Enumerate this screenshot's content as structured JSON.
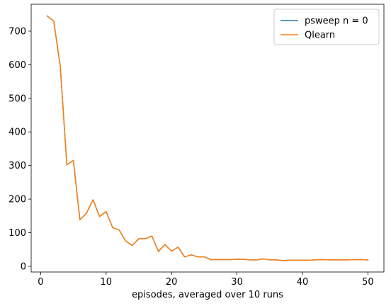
{
  "chart_data": {
    "type": "line",
    "xlabel": "episodes, averaged over 10 runs",
    "ylabel": "",
    "xlim": [
      -1.45,
      52.45
    ],
    "ylim": [
      -17,
      780
    ],
    "xticks": [
      0,
      10,
      20,
      30,
      40,
      50
    ],
    "yticks": [
      0,
      100,
      200,
      300,
      400,
      500,
      600,
      700
    ],
    "grid": false,
    "legend_position": "top-right",
    "x": [
      1,
      2,
      3,
      4,
      5,
      6,
      7,
      8,
      9,
      10,
      11,
      12,
      13,
      14,
      15,
      16,
      17,
      18,
      19,
      20,
      21,
      22,
      23,
      24,
      25,
      26,
      27,
      28,
      29,
      30,
      31,
      32,
      33,
      34,
      35,
      36,
      37,
      38,
      39,
      40,
      41,
      42,
      43,
      44,
      45,
      46,
      47,
      48,
      49,
      50
    ],
    "series": [
      {
        "name": "psweep n = 0",
        "color": "#1f77b4",
        "values": [
          745,
          730,
          595,
          302,
          315,
          138,
          158,
          198,
          148,
          163,
          115,
          108,
          75,
          62,
          82,
          82,
          90,
          44,
          65,
          45,
          57,
          28,
          34,
          28,
          28,
          20,
          20,
          20,
          20,
          21,
          21,
          19,
          19,
          22,
          19,
          19,
          17,
          18,
          18,
          18,
          18,
          19,
          20,
          19,
          19,
          19,
          19,
          20,
          20,
          19
        ]
      },
      {
        "name": "Qlearn",
        "color": "#ff7f0e",
        "values": [
          745,
          730,
          595,
          302,
          315,
          138,
          158,
          198,
          148,
          163,
          115,
          108,
          75,
          62,
          82,
          82,
          90,
          44,
          65,
          45,
          57,
          28,
          34,
          28,
          28,
          20,
          20,
          20,
          20,
          21,
          21,
          19,
          19,
          22,
          19,
          19,
          17,
          18,
          18,
          18,
          18,
          19,
          20,
          19,
          19,
          19,
          19,
          20,
          20,
          19
        ]
      }
    ]
  }
}
